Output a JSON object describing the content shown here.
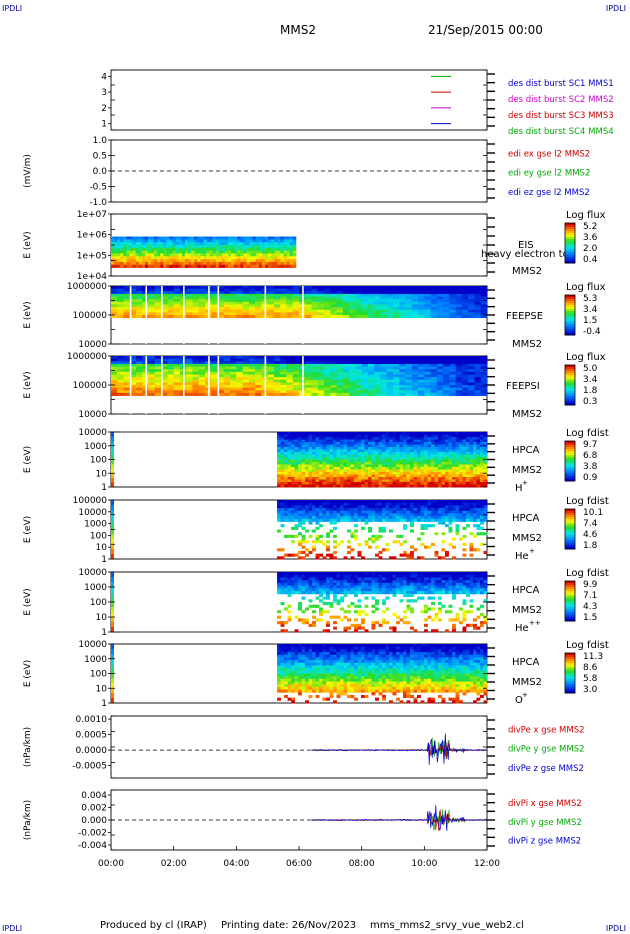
{
  "header": {
    "corner_label": "IPDLI",
    "spacecraft": "MMS2",
    "datetime": "21/Sep/2015 00:00"
  },
  "footer": {
    "produced_by": "Produced by cl (IRAP)",
    "printing_date": "Printing date: 26/Nov/2023",
    "filename": "mms_mms2_srvy_vue_web2.cl"
  },
  "chart_data": {
    "type": "heatmap",
    "x_ticks": [
      "00:00",
      "02:00",
      "04:00",
      "06:00",
      "08:00",
      "10:00",
      "12:00"
    ],
    "x_range_hours": [
      0,
      12
    ],
    "panels": [
      {
        "id": "des-dist-burst",
        "type": "line",
        "y_ticks": [
          "1",
          "2",
          "3",
          "4"
        ],
        "y_range": [
          0.6,
          4.4
        ],
        "ylabel": "",
        "legend": [
          {
            "label": "des dist burst SC1 MMS1",
            "color": "#0000cc"
          },
          {
            "label": "des dist burst SC2 MMS2",
            "color": "#cc00cc"
          },
          {
            "label": "des dist burst SC3 MMS3",
            "color": "#cc0000"
          },
          {
            "label": "des dist burst SC4 MMS4",
            "color": "#00aa00"
          }
        ]
      },
      {
        "id": "edi-e-gse",
        "type": "line",
        "ylabel": "(mV/m)",
        "y_ticks": [
          "1.0",
          "0.5",
          "0.0",
          "-0.5",
          "-1.0"
        ],
        "y_range": [
          -1.0,
          1.0
        ],
        "dashed_zero": true,
        "legend": [
          {
            "label": "edi ex gse l2 MMS2",
            "color": "#cc0000"
          },
          {
            "label": "edi ey gse l2 MMS2",
            "color": "#00aa00"
          },
          {
            "label": "edi ez gse l2 MMS2",
            "color": "#0000cc"
          }
        ]
      },
      {
        "id": "eis",
        "type": "heatmap",
        "ylabel": "E (eV)",
        "y_ticks": [
          "1e+07",
          "1e+06",
          "1e+05",
          "1e+04"
        ],
        "y_log_range": [
          4,
          7
        ],
        "coverage_hours": [
          0,
          5.9
        ],
        "instrument": [
          "EIS",
          "MMS2"
        ],
        "overlay_text": "heavy electron to",
        "colorbar": {
          "title": "Log flux",
          "ticks": [
            "5.2",
            "3.6",
            "2.0",
            "0.4"
          ]
        }
      },
      {
        "id": "feeps-e",
        "type": "heatmap",
        "ylabel": "E (eV)",
        "y_ticks": [
          "1000000",
          "100000",
          "10000"
        ],
        "y_log_range": [
          4,
          6
        ],
        "coverage_hours": [
          0,
          12
        ],
        "instrument": [
          "FEEPSE",
          "MMS2"
        ],
        "colorbar": {
          "title": "Log flux",
          "ticks": [
            "5.3",
            "3.4",
            "1.5",
            "-0.4"
          ]
        }
      },
      {
        "id": "feeps-i",
        "type": "heatmap",
        "ylabel": "E (eV)",
        "y_ticks": [
          "1000000",
          "100000",
          "10000"
        ],
        "y_log_range": [
          4,
          6
        ],
        "coverage_hours": [
          0,
          12
        ],
        "instrument": [
          "FEEPSI",
          "MMS2"
        ],
        "colorbar": {
          "title": "Log flux",
          "ticks": [
            "5.0",
            "3.4",
            "1.8",
            "0.3"
          ]
        }
      },
      {
        "id": "hpca-h",
        "type": "heatmap",
        "ylabel": "E (eV)",
        "y_ticks": [
          "10000",
          "1000",
          "100",
          "10",
          "1"
        ],
        "y_log_range": [
          0,
          4.2
        ],
        "coverage_hours": [
          5.3,
          12
        ],
        "instrument": [
          "HPCA",
          "MMS2"
        ],
        "species": "H",
        "species_charge": "+",
        "colorbar": {
          "title": "Log fdist",
          "ticks": [
            "9.7",
            "6.8",
            "3.8",
            "0.9"
          ]
        }
      },
      {
        "id": "hpca-he-plus",
        "type": "heatmap",
        "ylabel": "E (eV)",
        "y_ticks": [
          "100000",
          "10000",
          "1000",
          "100",
          "10",
          "1"
        ],
        "y_log_range": [
          0,
          5
        ],
        "coverage_hours": [
          5.3,
          12
        ],
        "instrument": [
          "HPCA",
          "MMS2"
        ],
        "species": "He",
        "species_charge": "+",
        "colorbar": {
          "title": "Log fdist",
          "ticks": [
            "10.1",
            "7.4",
            "4.6",
            "1.8"
          ]
        }
      },
      {
        "id": "hpca-he-plusplus",
        "type": "heatmap",
        "ylabel": "E (eV)",
        "y_ticks": [
          "10000",
          "1000",
          "100",
          "10",
          "1"
        ],
        "y_log_range": [
          0,
          4.2
        ],
        "coverage_hours": [
          5.3,
          12
        ],
        "instrument": [
          "HPCA",
          "MMS2"
        ],
        "species": "He",
        "species_charge": "++",
        "colorbar": {
          "title": "Log fdist",
          "ticks": [
            "9.9",
            "7.1",
            "4.3",
            "1.5"
          ]
        }
      },
      {
        "id": "hpca-o",
        "type": "heatmap",
        "ylabel": "E (eV)",
        "y_ticks": [
          "10000",
          "1000",
          "100",
          "10",
          "1"
        ],
        "y_log_range": [
          0,
          4.2
        ],
        "coverage_hours": [
          5.3,
          12
        ],
        "instrument": [
          "HPCA",
          "MMS2"
        ],
        "species": "O",
        "species_charge": "+",
        "colorbar": {
          "title": "Log fdist",
          "ticks": [
            "11.3",
            "8.6",
            "5.8",
            "3.0"
          ]
        }
      },
      {
        "id": "div-pe",
        "type": "line",
        "ylabel": "(nPa/km)",
        "y_ticks": [
          "0.0010",
          "0.0005",
          "0.0000",
          "-0.0005"
        ],
        "y_range": [
          -0.0009,
          0.0011
        ],
        "dashed_zero": true,
        "data_start_hours": 6.4,
        "legend": [
          {
            "label": "divPe x gse MMS2",
            "color": "#cc0000"
          },
          {
            "label": "divPe y gse MMS2",
            "color": "#00aa00"
          },
          {
            "label": "divPe z gse MMS2",
            "color": "#0000cc"
          }
        ]
      },
      {
        "id": "div-pi",
        "type": "line",
        "ylabel": "(nPa/km)",
        "y_ticks": [
          "0.004",
          "0.002",
          "0.000",
          "-0.002",
          "-0.004"
        ],
        "y_range": [
          -0.0048,
          0.0048
        ],
        "dashed_zero": true,
        "data_start_hours": 6.4,
        "legend": [
          {
            "label": "divPi x gse MMS2",
            "color": "#cc0000"
          },
          {
            "label": "divPi y gse MMS2",
            "color": "#00aa00"
          },
          {
            "label": "divPi z gse MMS2",
            "color": "#0000cc"
          }
        ]
      }
    ]
  }
}
